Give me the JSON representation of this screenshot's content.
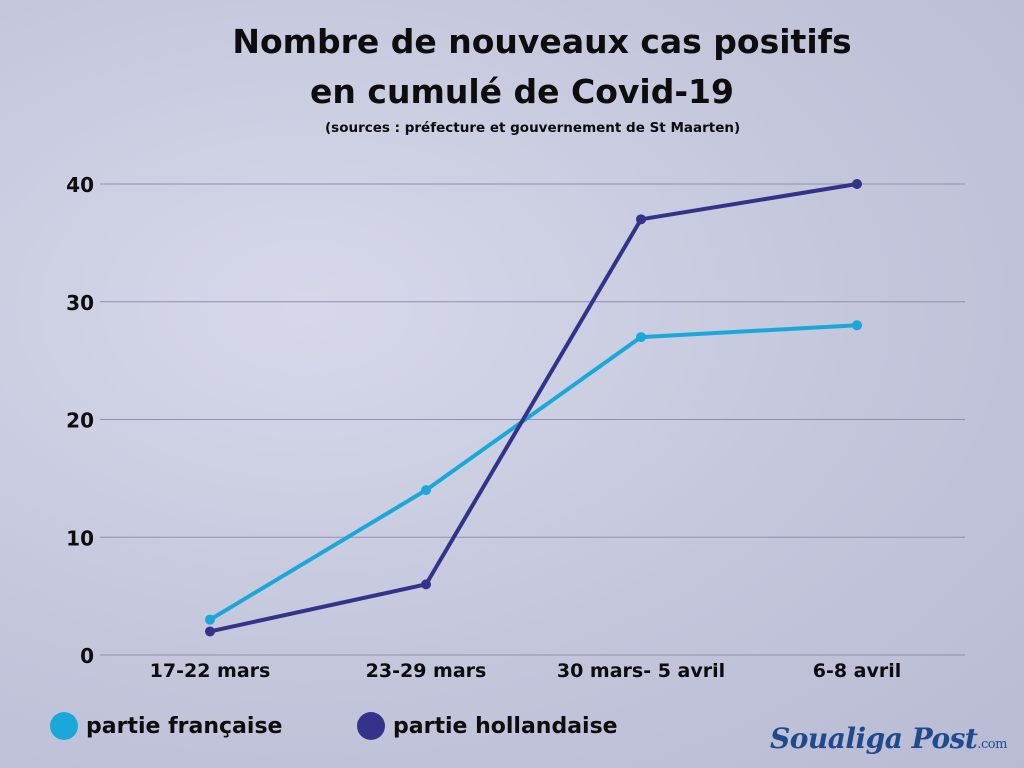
{
  "title_line1": "Nombre de nouveaux cas positifs",
  "title_line2": "en cumulé de Covid-19",
  "subtitle": "(sources : préfecture et gouvernement de St Maarten)",
  "brand": "Soualiga Post",
  "brand_domain": ".com",
  "colors": {
    "francaise": "#1aa7d9",
    "hollandaise": "#34328a",
    "grid": "#8f91ab"
  },
  "chart_data": {
    "type": "line",
    "categories": [
      "17-22 mars",
      "23-29 mars",
      "30 mars- 5 avril",
      "6-8 avril"
    ],
    "series": [
      {
        "name": "partie française",
        "values": [
          3,
          14,
          27,
          28
        ]
      },
      {
        "name": "partie hollandaise",
        "values": [
          2,
          6,
          37,
          40
        ]
      }
    ],
    "ylim": [
      0,
      40
    ],
    "yticks": [
      0,
      10,
      20,
      30,
      40
    ],
    "grid": true,
    "legend": "bottom-left"
  }
}
